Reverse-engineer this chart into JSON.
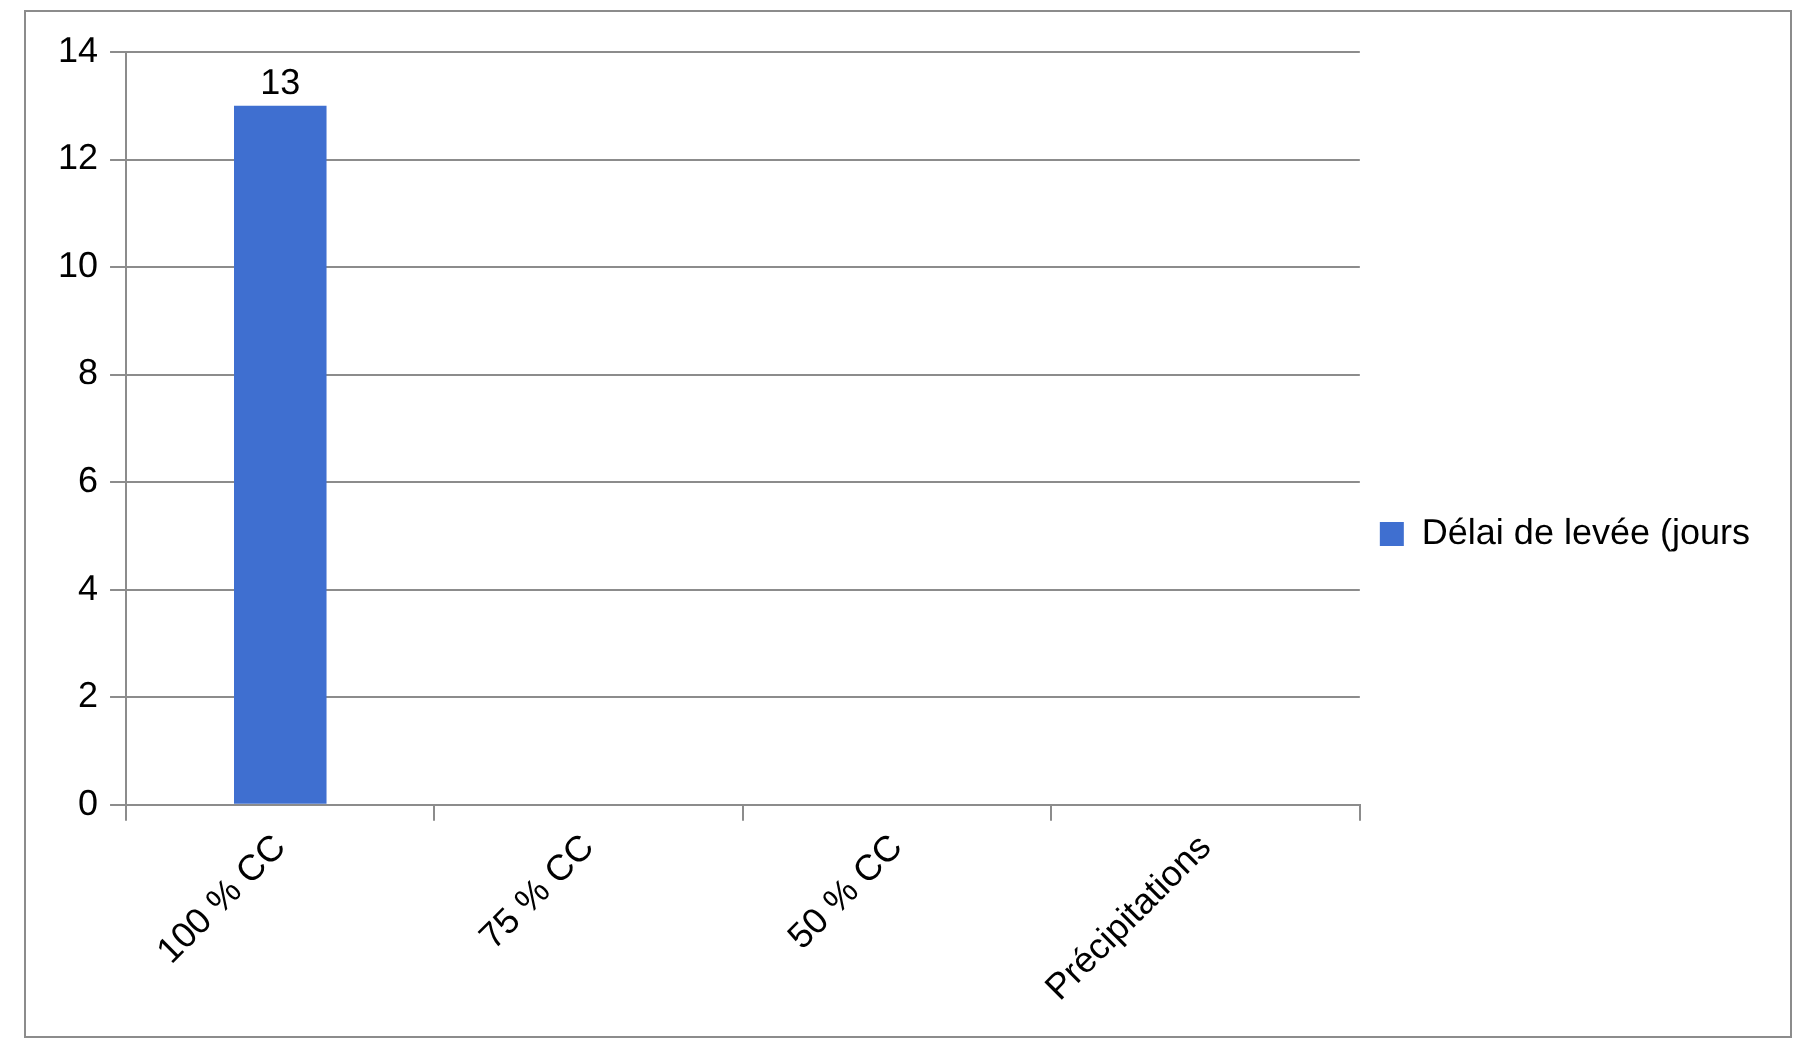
{
  "chart_data": {
    "type": "bar",
    "categories": [
      "100 % CC",
      "75 % CC",
      "50 % CC",
      "Précipitations"
    ],
    "series": [
      {
        "name": "Délai de levée (jours",
        "color": "#3f6fd0",
        "values": [
          13,
          null,
          null,
          null
        ]
      }
    ],
    "ylim": [
      0,
      14
    ],
    "yticks": [
      0,
      2,
      4,
      6,
      8,
      10,
      12,
      14
    ],
    "grid": "y",
    "legend": "right",
    "data_labels": true
  }
}
